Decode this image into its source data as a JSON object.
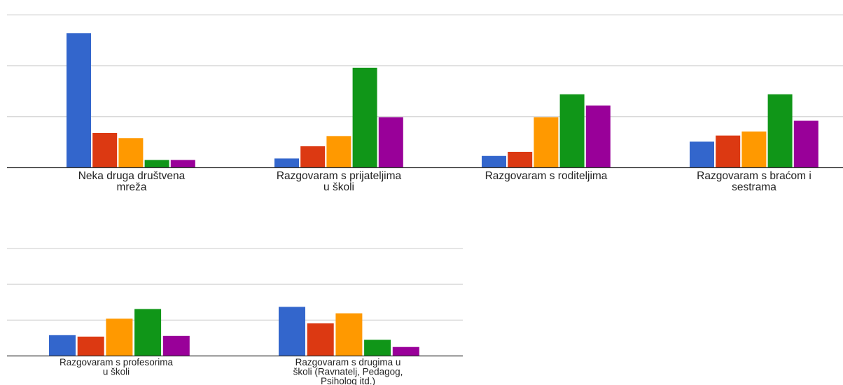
{
  "chart_data": {
    "type": "bar",
    "title": "",
    "xlabel": "",
    "ylabel": "",
    "ylim": [
      0,
      3
    ],
    "grid": true,
    "series_colors": [
      "#3366cc",
      "#dc3912",
      "#ff9900",
      "#109618",
      "#990099"
    ],
    "groups": [
      {
        "label": [
          "Neka druga društvena",
          "mreža"
        ],
        "values": [
          2.64,
          0.68,
          0.58,
          0.15,
          0.15
        ]
      },
      {
        "label": [
          "Razgovaram s prijateljima",
          "u školi"
        ],
        "values": [
          0.18,
          0.42,
          0.62,
          1.96,
          0.99
        ]
      },
      {
        "label": [
          "Razgovaram s roditeljima"
        ],
        "values": [
          0.23,
          0.31,
          0.99,
          1.44,
          1.22
        ]
      },
      {
        "label": [
          "Razgovaram s braćom i",
          "sestrama"
        ],
        "values": [
          0.51,
          0.63,
          0.71,
          1.44,
          0.92
        ]
      },
      {
        "label": [
          "Razgovaram s profesorima",
          "u školi"
        ],
        "values": [
          0.58,
          0.54,
          1.04,
          1.31,
          0.56
        ]
      },
      {
        "label": [
          "Razgovaram s drugima u",
          "školi (Ravnatelj, Pedagog,",
          "Psiholog itd.)"
        ],
        "values": [
          1.37,
          0.91,
          1.19,
          0.45,
          0.25
        ]
      }
    ]
  }
}
